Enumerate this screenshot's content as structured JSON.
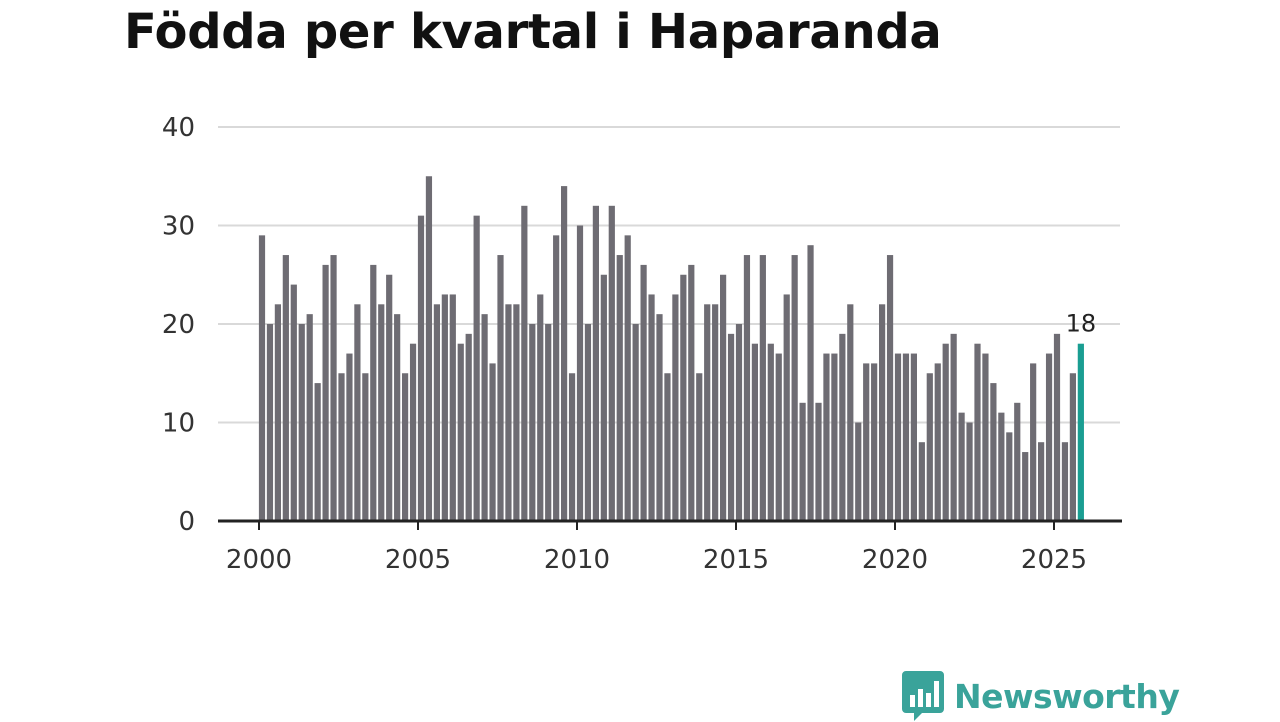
{
  "chart_data": {
    "type": "bar",
    "title": "Födda per kvartal i Haparanda",
    "xlabel": "",
    "ylabel": "",
    "ylim": [
      0,
      40
    ],
    "yticks": [
      0,
      10,
      20,
      30,
      40
    ],
    "x_range": [
      2000,
      2025.75
    ],
    "xticks": [
      2000,
      2005,
      2010,
      2015,
      2020,
      2025
    ],
    "grid": true,
    "bar_color": "#6e6c73",
    "highlight_color": "#1a9e92",
    "highlight_last": true,
    "highlight_label": "18",
    "series": [
      {
        "name": "Födda",
        "values": [
          29,
          20,
          22,
          27,
          24,
          20,
          21,
          14,
          26,
          27,
          15,
          17,
          22,
          15,
          26,
          22,
          25,
          21,
          15,
          18,
          31,
          35,
          22,
          23,
          23,
          18,
          19,
          31,
          21,
          16,
          27,
          22,
          22,
          32,
          20,
          23,
          20,
          29,
          34,
          15,
          30,
          20,
          32,
          25,
          32,
          27,
          29,
          20,
          26,
          23,
          21,
          15,
          23,
          25,
          26,
          15,
          22,
          22,
          25,
          19,
          20,
          27,
          18,
          27,
          18,
          17,
          23,
          27,
          12,
          28,
          12,
          17,
          17,
          19,
          22,
          10,
          16,
          16,
          22,
          27,
          17,
          17,
          17,
          8,
          15,
          16,
          18,
          19,
          11,
          10,
          18,
          17,
          14,
          11,
          9,
          12,
          7,
          16,
          8,
          17,
          19,
          8,
          15,
          18
        ]
      }
    ]
  },
  "brand": {
    "name": "Newsworthy",
    "color": "#3aa39a"
  }
}
